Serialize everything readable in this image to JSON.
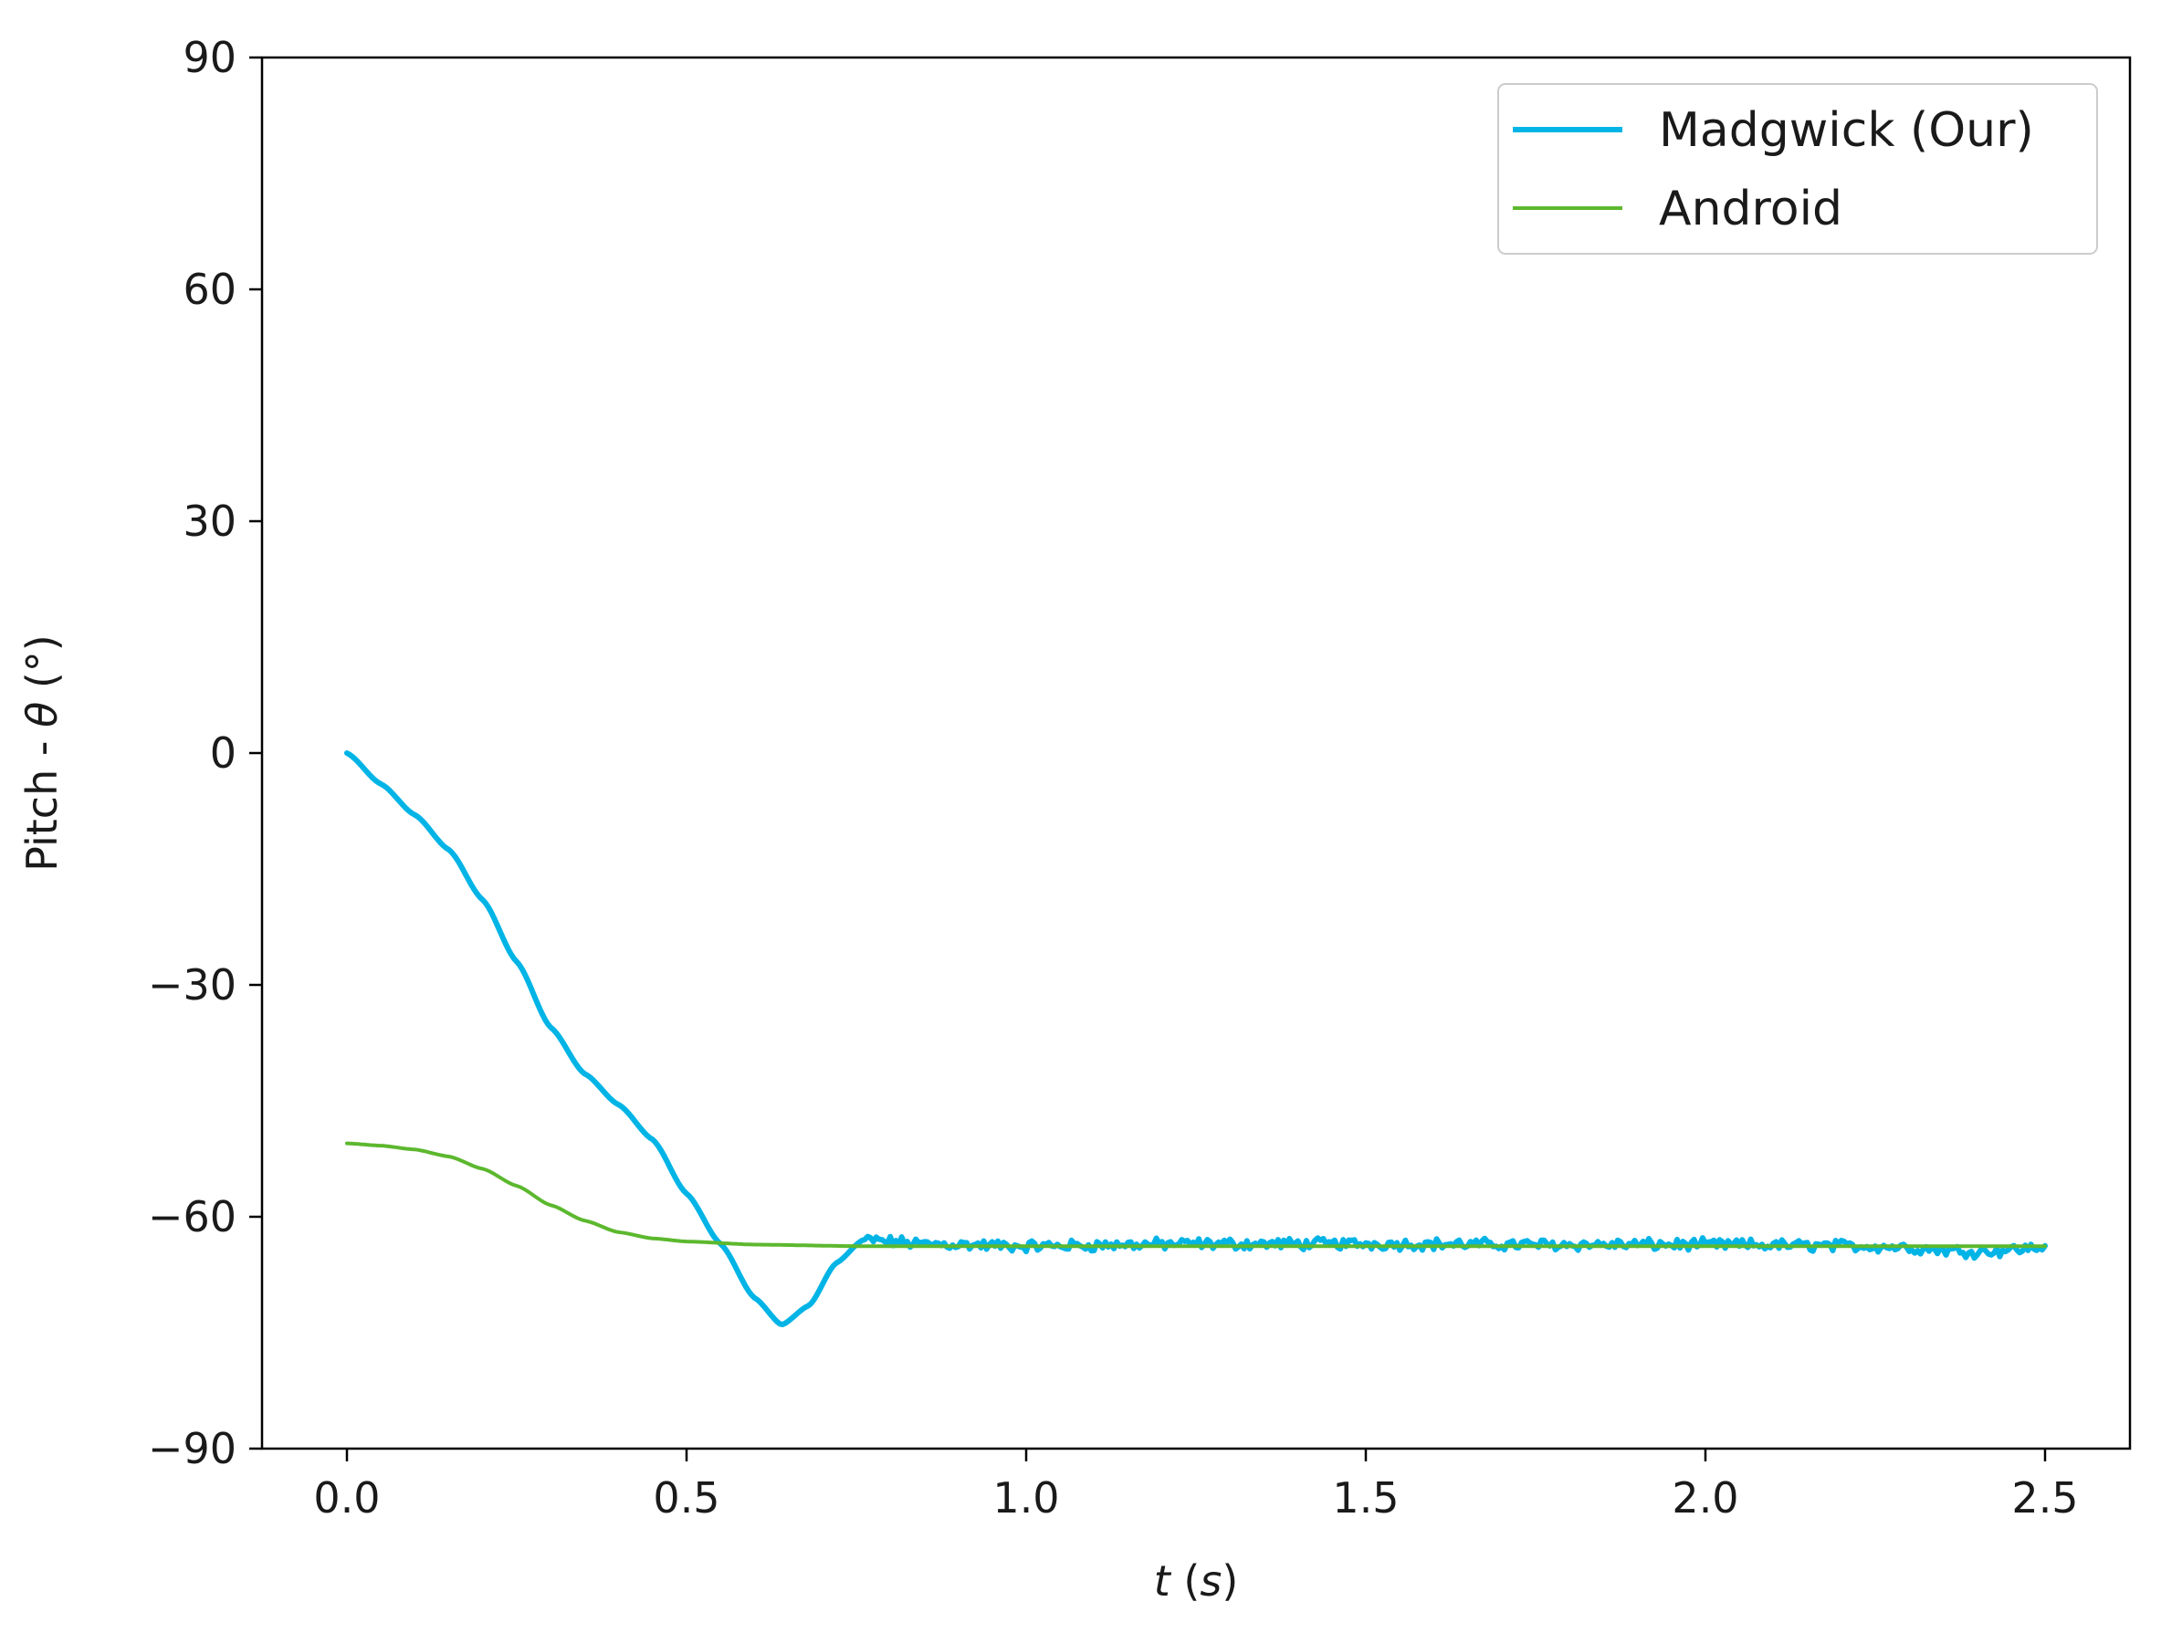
{
  "chart_data": {
    "type": "line",
    "title": "",
    "xlabel": "t (s)",
    "ylabel": "Pitch - θ (°)",
    "xlim": [
      -0.125,
      2.625
    ],
    "ylim": [
      -90,
      90
    ],
    "xticks": [
      0.0,
      0.5,
      1.0,
      1.5,
      2.0,
      2.5
    ],
    "xtick_labels": [
      "0.0",
      "0.5",
      "1.0",
      "1.5",
      "2.0",
      "2.5"
    ],
    "yticks": [
      -90,
      -60,
      -30,
      0,
      30,
      60,
      90
    ],
    "ytick_labels": [
      "−90",
      "−60",
      "−30",
      "0",
      "30",
      "60",
      "90"
    ],
    "grid": false,
    "legend": {
      "position": "top-right"
    },
    "series": [
      {
        "name": "Madgwick (Our)",
        "color": "#00b4e6",
        "noisy_from": 0.76,
        "noise_amplitude": 0.6,
        "points": [
          [
            0.0,
            0.0
          ],
          [
            0.05,
            -4.0
          ],
          [
            0.1,
            -8.0
          ],
          [
            0.15,
            -12.5
          ],
          [
            0.2,
            -19.0
          ],
          [
            0.25,
            -27.0
          ],
          [
            0.3,
            -35.5
          ],
          [
            0.35,
            -41.5
          ],
          [
            0.4,
            -45.5
          ],
          [
            0.45,
            -50.0
          ],
          [
            0.5,
            -57.0
          ],
          [
            0.55,
            -63.5
          ],
          [
            0.6,
            -70.5
          ],
          [
            0.64,
            -74.0
          ],
          [
            0.68,
            -71.5
          ],
          [
            0.72,
            -66.0
          ],
          [
            0.76,
            -63.0
          ],
          [
            0.85,
            -63.5
          ],
          [
            1.0,
            -63.8
          ],
          [
            1.25,
            -63.5
          ],
          [
            1.5,
            -63.5
          ],
          [
            1.75,
            -63.6
          ],
          [
            2.0,
            -63.6
          ],
          [
            2.25,
            -63.8
          ],
          [
            2.4,
            -64.5
          ],
          [
            2.5,
            -64.0
          ]
        ]
      },
      {
        "name": "Android",
        "color": "#5cb82e",
        "points": [
          [
            0.0,
            -50.5
          ],
          [
            0.05,
            -50.8
          ],
          [
            0.1,
            -51.3
          ],
          [
            0.15,
            -52.2
          ],
          [
            0.2,
            -53.8
          ],
          [
            0.25,
            -56.0
          ],
          [
            0.3,
            -58.5
          ],
          [
            0.35,
            -60.5
          ],
          [
            0.4,
            -62.0
          ],
          [
            0.45,
            -62.8
          ],
          [
            0.5,
            -63.2
          ],
          [
            0.6,
            -63.6
          ],
          [
            0.75,
            -63.8
          ],
          [
            1.0,
            -63.8
          ],
          [
            1.5,
            -63.8
          ],
          [
            2.0,
            -63.8
          ],
          [
            2.5,
            -63.8
          ]
        ]
      }
    ]
  }
}
